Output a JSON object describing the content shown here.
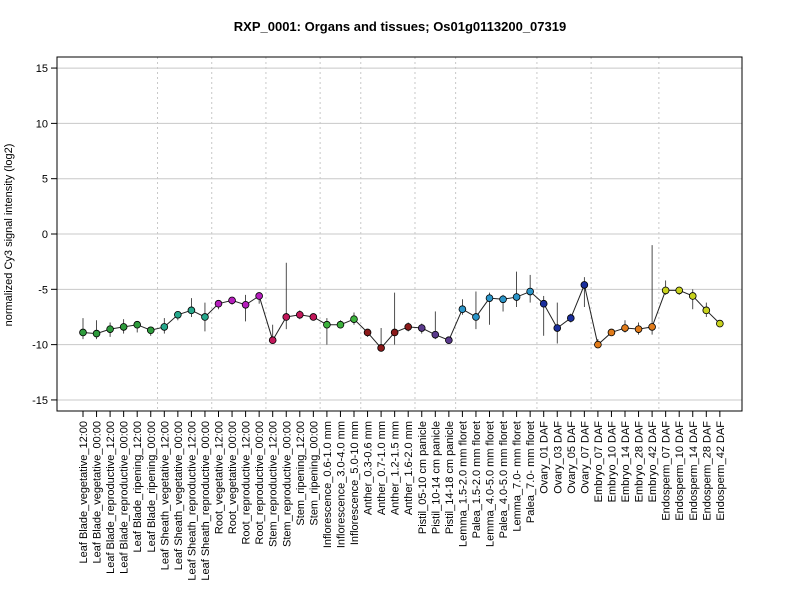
{
  "chart_data": {
    "type": "line",
    "title": "RXP_0001: Organs and tissues; Os01g0113200_07319",
    "xlabel": "",
    "ylabel": "normalized Cy3 signal intensity (log2)",
    "ylim": [
      -16,
      16
    ],
    "yticks": [
      -15,
      -10,
      -5,
      0,
      5,
      10,
      15
    ],
    "grid": "horizontal at y-ticks; dotted vertical separators between tissue groups",
    "categories": [
      "Leaf Blade_vegetative_12:00",
      "Leaf Blade_vegetative_00:00",
      "Leaf Blade_reproductive_12:00",
      "Leaf Blade_reproductive_00:00",
      "Leaf Blade_ripening_12:00",
      "Leaf Blade_ripening_00:00",
      "Leaf Sheath_vegetative_12:00",
      "Leaf Sheath_vegetative_00:00",
      "Leaf Sheath_reproductive_12:00",
      "Leaf Sheath_reproductive_00:00",
      "Root_vegetative_12:00",
      "Root_vegetative_00:00",
      "Root_reproductive_12:00",
      "Root_reproductive_00:00",
      "Stem_reproductive_12:00",
      "Stem_reproductive_00:00",
      "Stem_ripening_12:00",
      "Stem_ripening_00:00",
      "Inflorescence_0.6-1.0 mm",
      "Inflorescence_3.0-4.0 mm",
      "Inflorescence_5.0-10 mm",
      "Anther_0.3-0.6 mm",
      "Anther_0.7-1.0 mm",
      "Anther_1.2-1.5 mm",
      "Anther_1.6-2.0 mm",
      "Pistil_05-10 cm panicle",
      "Pistil_10-14 cm panicle",
      "Pistil_14-18 cm panicle",
      "Lemma_1.5-2.0 mm floret",
      "Palea_1.5-2.0 mm floret",
      "Lemma_4.0-5.0 mm floret",
      "Palea_4.0-5.0 mm floret",
      "Lemma_7.0- mm floret",
      "Palea_7.0- mm floret",
      "Ovary_01 DAF",
      "Ovary_03 DAF",
      "Ovary_05 DAF",
      "Ovary_07 DAF",
      "Embryo_07 DAF",
      "Embryo_10 DAF",
      "Embryo_14 DAF",
      "Embryo_28 DAF",
      "Embryo_42 DAF",
      "Endosperm_07 DAF",
      "Endosperm_10 DAF",
      "Endosperm_14 DAF",
      "Endosperm_28 DAF",
      "Endosperm_42 DAF"
    ],
    "values": [
      -8.9,
      -9.0,
      -8.6,
      -8.4,
      -8.2,
      -8.7,
      -8.4,
      -7.3,
      -6.9,
      -7.5,
      -6.3,
      -6.0,
      -6.4,
      -5.6,
      -9.6,
      -7.5,
      -7.3,
      -7.5,
      -8.2,
      -8.2,
      -7.7,
      -8.9,
      -10.3,
      -8.9,
      -8.4,
      -8.5,
      -9.1,
      -9.6,
      -6.8,
      -7.5,
      -5.8,
      -5.9,
      -5.7,
      -5.2,
      -6.3,
      -8.5,
      -7.6,
      -4.6,
      -10.0,
      -8.9,
      -8.5,
      -8.6,
      -8.4,
      -5.1,
      -5.1,
      -5.6,
      -6.9,
      -8.1
    ],
    "err_low": [
      -9.5,
      -9.5,
      -9.3,
      -9.0,
      -8.9,
      -9.2,
      -9.0,
      -7.8,
      -7.5,
      -8.8,
      -6.8,
      -6.4,
      -7.9,
      -6.3,
      -9.9,
      -8.6,
      -7.7,
      -7.7,
      -10.0,
      -8.5,
      -8.2,
      -9.3,
      -10.6,
      -10.0,
      -8.8,
      -9.0,
      -9.5,
      -9.9,
      -7.3,
      -8.6,
      -8.2,
      -7.0,
      -6.6,
      -6.2,
      -9.2,
      -9.9,
      -8.0,
      -6.6,
      -10.2,
      -9.2,
      -8.9,
      -9.1,
      -9.1,
      -5.5,
      -5.5,
      -6.8,
      -7.5,
      -8.3
    ],
    "err_high": [
      -7.6,
      -7.8,
      -8.0,
      -7.7,
      -7.9,
      -8.4,
      -7.6,
      -7.1,
      -5.8,
      -6.2,
      -6.1,
      -5.7,
      -5.5,
      -5.4,
      -8.2,
      -2.6,
      -6.9,
      -7.2,
      -7.6,
      -7.8,
      -7.1,
      -8.6,
      -8.5,
      -5.3,
      -8.0,
      -8.1,
      -7.0,
      -9.3,
      -5.9,
      -5.2,
      -5.3,
      -5.5,
      -3.4,
      -3.7,
      -5.6,
      -6.2,
      -7.2,
      -3.9,
      -9.5,
      -8.6,
      -7.8,
      -8.0,
      -1.0,
      -4.2,
      -4.8,
      -5.0,
      -6.2,
      -7.9
    ],
    "point_colors": [
      "#2e9b3c",
      "#2e9b3c",
      "#2e9b3c",
      "#2e9b3c",
      "#2e9b3c",
      "#2e9b3c",
      "#26a88c",
      "#26a88c",
      "#26a88c",
      "#26a88c",
      "#b61fbd",
      "#b61fbd",
      "#b61fbd",
      "#b61fbd",
      "#c2185b",
      "#c2185b",
      "#c2185b",
      "#c2185b",
      "#3db23d",
      "#3db23d",
      "#3db23d",
      "#8b1a1a",
      "#8b1a1a",
      "#8b1a1a",
      "#8b1a1a",
      "#5a3a8c",
      "#5a3a8c",
      "#5a3a8c",
      "#2b95c9",
      "#2b95c9",
      "#2b95c9",
      "#2b95c9",
      "#2b95c9",
      "#2b95c9",
      "#1a2e9c",
      "#1a2e9c",
      "#1a2e9c",
      "#1a2e9c",
      "#e07b1a",
      "#e07b1a",
      "#e07b1a",
      "#e07b1a",
      "#e07b1a",
      "#c8d21e",
      "#c8d21e",
      "#c8d21e",
      "#c8d21e",
      "#c8d21e"
    ],
    "group_separators_after_index": [
      5,
      9,
      13,
      17,
      20,
      24,
      27,
      33,
      37,
      42
    ]
  }
}
